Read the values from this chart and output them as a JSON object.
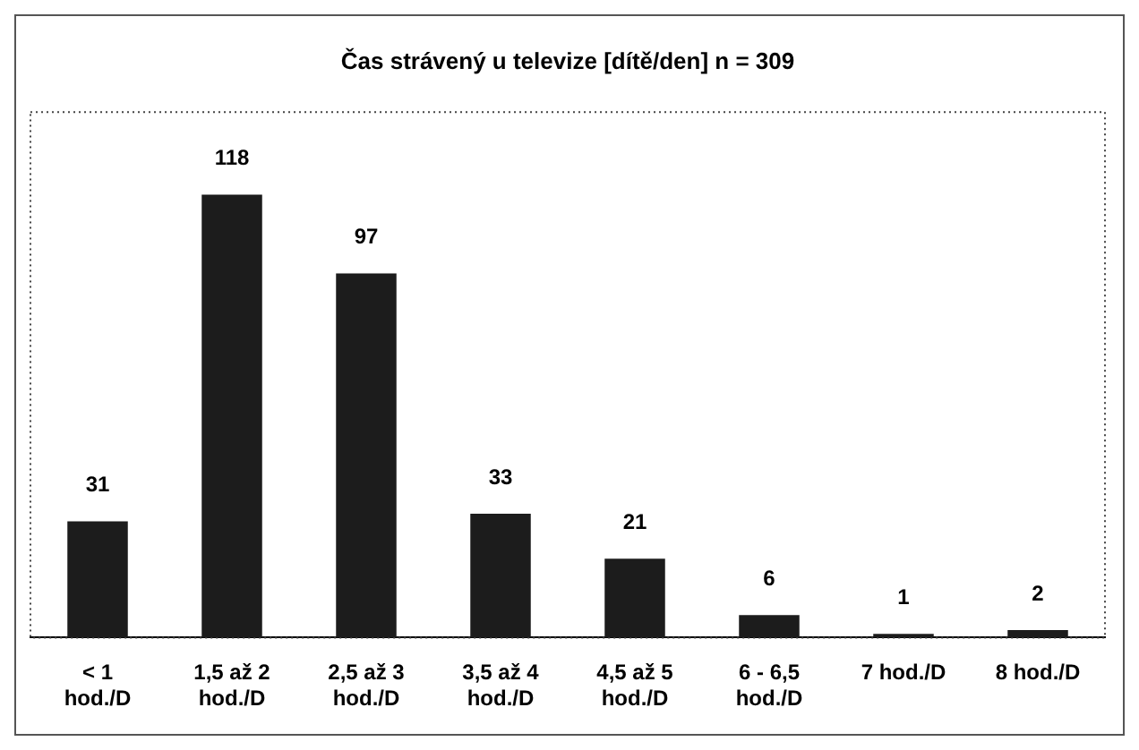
{
  "chart_data": {
    "type": "bar",
    "title": "Čas strávený u televize [dítě/den] n = 309",
    "categories": [
      "< 1 hod./D",
      "1,5 až 2 hod./D",
      "2,5 až 3 hod./D",
      "3,5 až 4 hod./D",
      "4,5 až 5 hod./D",
      "6 - 6,5 hod./D",
      "7 hod./D",
      "8 hod./D"
    ],
    "values": [
      31,
      118,
      97,
      33,
      21,
      6,
      1,
      2
    ],
    "color": "#1c1c1c",
    "data_labels": true,
    "legend": false,
    "grid": false
  }
}
